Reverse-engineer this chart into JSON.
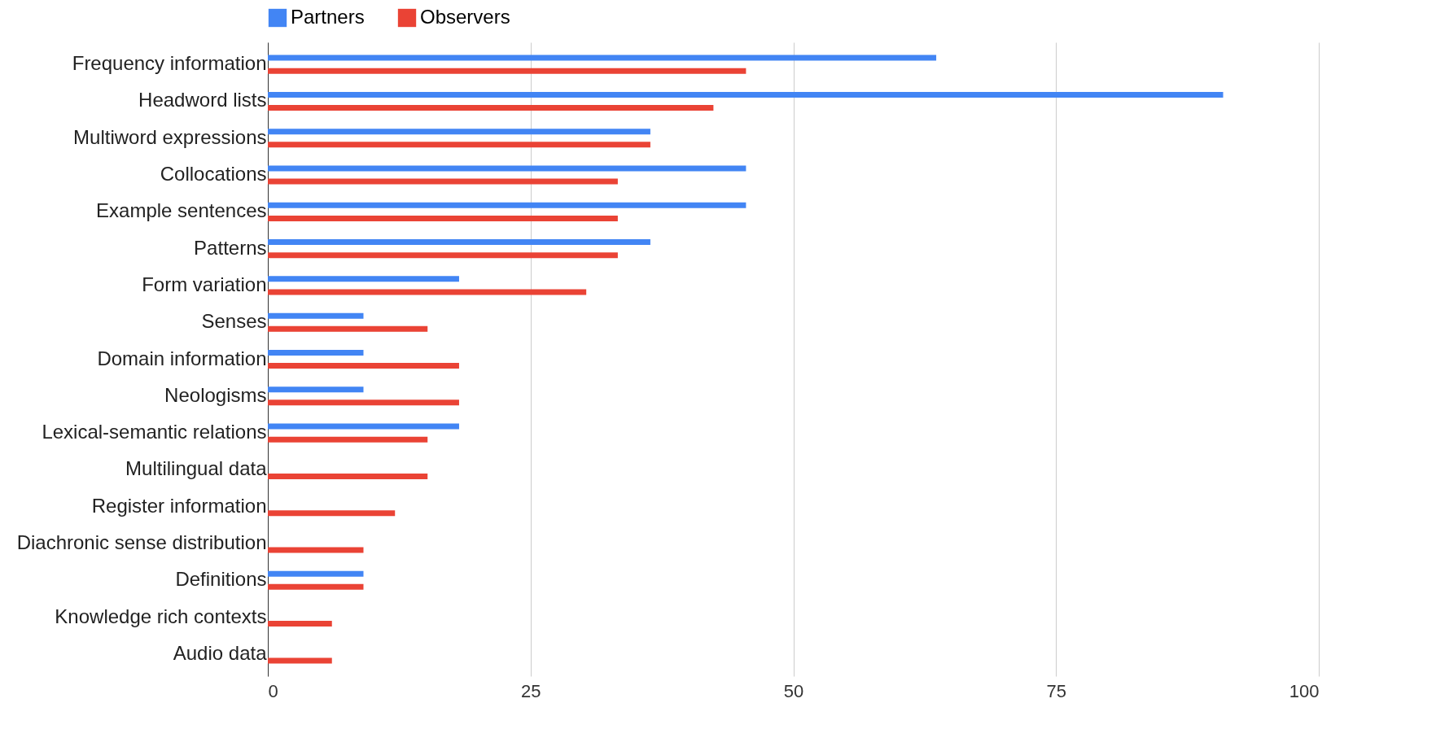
{
  "chart_data": {
    "type": "bar",
    "orientation": "horizontal",
    "categories": [
      "Frequency information",
      "Headword lists",
      "Multiword expressions",
      "Collocations",
      "Example sentences",
      "Patterns",
      "Form variation",
      "Senses",
      "Domain information",
      "Neologisms",
      "Lexical-semantic relations",
      "Multilingual data",
      "Register information",
      "Diachronic sense distribution",
      "Definitions",
      "Knowledge rich contexts",
      "Audio data"
    ],
    "series": [
      {
        "name": "Partners",
        "color": "#4285f4",
        "values": [
          63.6,
          90.9,
          36.4,
          45.5,
          45.5,
          36.4,
          18.2,
          9.1,
          9.1,
          9.1,
          18.2,
          0,
          0,
          0,
          9.1,
          0,
          0
        ]
      },
      {
        "name": "Observers",
        "color": "#ea4335",
        "values": [
          45.5,
          42.4,
          36.4,
          33.3,
          33.3,
          33.3,
          30.3,
          15.2,
          18.2,
          18.2,
          15.2,
          15.2,
          12.1,
          9.1,
          9.1,
          6.1,
          6.1
        ]
      }
    ],
    "xlim": [
      0,
      100
    ],
    "xticks": [
      0,
      25,
      50,
      75,
      100
    ],
    "grid": "x",
    "legend": "top"
  }
}
